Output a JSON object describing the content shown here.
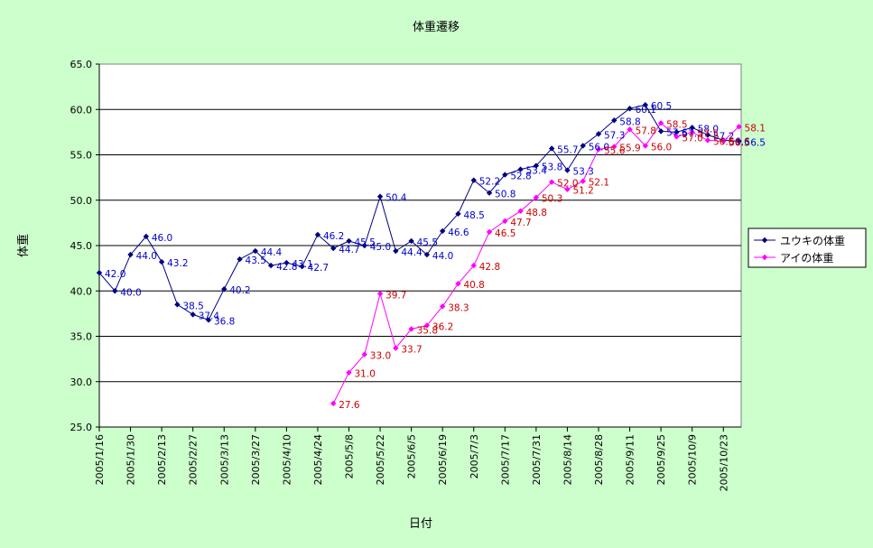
{
  "chart_data": {
    "type": "line",
    "title": "体重遷移",
    "xlabel": "日付",
    "ylabel": "体重",
    "ylim": [
      25.0,
      65.0
    ],
    "ytick_step": 5.0,
    "y_ticks": [
      "25.0",
      "30.0",
      "35.0",
      "40.0",
      "45.0",
      "50.0",
      "55.0",
      "60.0",
      "65.0"
    ],
    "x_tick_labels": [
      "2005/1/16",
      "2005/1/30",
      "2005/2/13",
      "2005/2/27",
      "2005/3/13",
      "2005/3/27",
      "2005/4/10",
      "2005/4/24",
      "2005/5/8",
      "2005/5/22",
      "2005/6/5",
      "2005/6/19",
      "2005/7/3",
      "2005/7/17",
      "2005/7/31",
      "2005/8/14",
      "2005/8/28",
      "2005/9/11",
      "2005/9/25",
      "2005/10/9",
      "2005/10/23"
    ],
    "xlim": [
      "2005/1/16",
      "2005/10/31"
    ],
    "grid": "horizontal",
    "legend_position": "right",
    "series": [
      {
        "name": "ユウキの体重",
        "color": "#000080",
        "label_color": "#0000cc",
        "marker": "diamond",
        "points": [
          {
            "x": "2005/1/16",
            "y": 42.0
          },
          {
            "x": "2005/1/23",
            "y": 40.0
          },
          {
            "x": "2005/1/30",
            "y": 44.0
          },
          {
            "x": "2005/2/6",
            "y": 46.0
          },
          {
            "x": "2005/2/13",
            "y": 43.2
          },
          {
            "x": "2005/2/20",
            "y": 38.5
          },
          {
            "x": "2005/2/27",
            "y": 37.4
          },
          {
            "x": "2005/3/6",
            "y": 36.8
          },
          {
            "x": "2005/3/13",
            "y": 40.2
          },
          {
            "x": "2005/3/20",
            "y": 43.5
          },
          {
            "x": "2005/3/27",
            "y": 44.4
          },
          {
            "x": "2005/4/3",
            "y": 42.8
          },
          {
            "x": "2005/4/10",
            "y": 43.1
          },
          {
            "x": "2005/4/17",
            "y": 42.7
          },
          {
            "x": "2005/4/24",
            "y": 46.2
          },
          {
            "x": "2005/5/1",
            "y": 44.7
          },
          {
            "x": "2005/5/8",
            "y": 45.5
          },
          {
            "x": "2005/5/15",
            "y": 45.0
          },
          {
            "x": "2005/5/22",
            "y": 50.4
          },
          {
            "x": "2005/5/29",
            "y": 44.4
          },
          {
            "x": "2005/6/5",
            "y": 45.5
          },
          {
            "x": "2005/6/12",
            "y": 44.0
          },
          {
            "x": "2005/6/19",
            "y": 46.6
          },
          {
            "x": "2005/6/26",
            "y": 48.5
          },
          {
            "x": "2005/7/3",
            "y": 52.2
          },
          {
            "x": "2005/7/10",
            "y": 50.8
          },
          {
            "x": "2005/7/17",
            "y": 52.8
          },
          {
            "x": "2005/7/24",
            "y": 53.4
          },
          {
            "x": "2005/7/31",
            "y": 53.8
          },
          {
            "x": "2005/8/7",
            "y": 55.7
          },
          {
            "x": "2005/8/14",
            "y": 53.3
          },
          {
            "x": "2005/8/21",
            "y": 56.0
          },
          {
            "x": "2005/8/28",
            "y": 57.3
          },
          {
            "x": "2005/9/4",
            "y": 58.8
          },
          {
            "x": "2005/9/11",
            "y": 60.1
          },
          {
            "x": "2005/9/18",
            "y": 60.5
          },
          {
            "x": "2005/9/25",
            "y": 57.6
          },
          {
            "x": "2005/10/2",
            "y": 57.5
          },
          {
            "x": "2005/10/9",
            "y": 58.0
          },
          {
            "x": "2005/10/16",
            "y": 57.2
          },
          {
            "x": "2005/10/23",
            "y": 56.6
          },
          {
            "x": "2005/10/30",
            "y": 56.5
          }
        ]
      },
      {
        "name": "アイの体重",
        "color": "#ff00ff",
        "label_color": "#cc0000",
        "marker": "diamond",
        "points": [
          {
            "x": "2005/5/1",
            "y": 27.6
          },
          {
            "x": "2005/5/8",
            "y": 31.0
          },
          {
            "x": "2005/5/15",
            "y": 33.0
          },
          {
            "x": "2005/5/22",
            "y": 39.7
          },
          {
            "x": "2005/5/29",
            "y": 33.7
          },
          {
            "x": "2005/6/5",
            "y": 35.8
          },
          {
            "x": "2005/6/12",
            "y": 36.2
          },
          {
            "x": "2005/6/19",
            "y": 38.3
          },
          {
            "x": "2005/6/26",
            "y": 40.8
          },
          {
            "x": "2005/7/3",
            "y": 42.8
          },
          {
            "x": "2005/7/10",
            "y": 46.5
          },
          {
            "x": "2005/7/17",
            "y": 47.7
          },
          {
            "x": "2005/7/24",
            "y": 48.8
          },
          {
            "x": "2005/7/31",
            "y": 50.3
          },
          {
            "x": "2005/8/7",
            "y": 52.0
          },
          {
            "x": "2005/8/14",
            "y": 51.2
          },
          {
            "x": "2005/8/21",
            "y": 52.1
          },
          {
            "x": "2005/8/28",
            "y": 55.6
          },
          {
            "x": "2005/9/4",
            "y": 55.9
          },
          {
            "x": "2005/9/11",
            "y": 57.8
          },
          {
            "x": "2005/9/18",
            "y": 56.0
          },
          {
            "x": "2005/9/25",
            "y": 58.5
          },
          {
            "x": "2005/10/2",
            "y": 57.0
          },
          {
            "x": "2005/10/9",
            "y": 57.5
          },
          {
            "x": "2005/10/16",
            "y": 56.6
          },
          {
            "x": "2005/10/23",
            "y": 56.5
          },
          {
            "x": "2005/10/30",
            "y": 58.1
          }
        ]
      }
    ],
    "colors": {
      "background": "#ccffcc",
      "plot_area": "#ffffff",
      "grid": "#000000"
    }
  }
}
